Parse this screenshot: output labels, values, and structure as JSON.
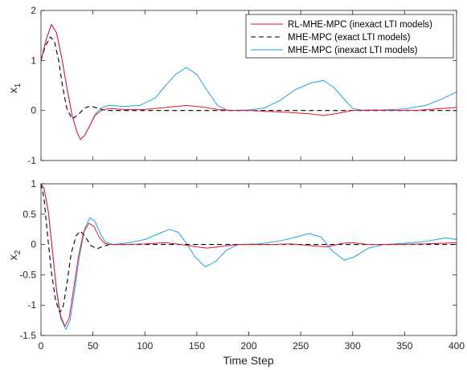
{
  "colors": {
    "rl": "#e8142c",
    "exact": "#000000",
    "inexact": "#1ea3e6",
    "axis": "#262626"
  },
  "chart_data": [
    {
      "type": "line",
      "ylabel": "x",
      "ylabel_sub": "1",
      "xlim": [
        0,
        400
      ],
      "ylim": [
        -1,
        2
      ],
      "xticks": [
        0,
        50,
        100,
        150,
        200,
        250,
        300,
        350,
        400
      ],
      "xtick_labels": [],
      "yticks": [
        -1,
        0,
        1,
        2
      ],
      "ytick_labels": [
        "-1",
        "0",
        "1",
        "2"
      ],
      "grid": false,
      "legend": "top-right",
      "series": [
        {
          "name": "RL-MHE-MPC (inexact LTI models)",
          "style": "solid",
          "color_key": "rl",
          "points": [
            [
              0,
              1
            ],
            [
              5,
              1.42
            ],
            [
              10,
              1.72
            ],
            [
              15,
              1.55
            ],
            [
              20,
              1.05
            ],
            [
              25,
              0.45
            ],
            [
              30,
              -0.1
            ],
            [
              35,
              -0.45
            ],
            [
              38,
              -0.58
            ],
            [
              42,
              -0.5
            ],
            [
              47,
              -0.3
            ],
            [
              52,
              -0.1
            ],
            [
              58,
              0
            ],
            [
              65,
              0.04
            ],
            [
              80,
              0.02
            ],
            [
              100,
              0.02
            ],
            [
              120,
              0.06
            ],
            [
              140,
              0.1
            ],
            [
              155,
              0.07
            ],
            [
              170,
              0.02
            ],
            [
              185,
              0
            ],
            [
              200,
              0
            ],
            [
              220,
              -0.02
            ],
            [
              240,
              -0.04
            ],
            [
              260,
              -0.07
            ],
            [
              272,
              -0.1
            ],
            [
              285,
              -0.06
            ],
            [
              300,
              0
            ],
            [
              320,
              0.01
            ],
            [
              340,
              0
            ],
            [
              360,
              0
            ],
            [
              380,
              0.03
            ],
            [
              400,
              0.06
            ]
          ]
        },
        {
          "name": "MHE-MPC (exact LTI models)",
          "style": "dashed",
          "color_key": "exact",
          "points": [
            [
              0,
              1
            ],
            [
              4,
              1.28
            ],
            [
              9,
              1.47
            ],
            [
              13,
              1.38
            ],
            [
              17,
              1.0
            ],
            [
              21,
              0.45
            ],
            [
              25,
              0.03
            ],
            [
              30,
              -0.17
            ],
            [
              36,
              -0.08
            ],
            [
              42,
              0.05
            ],
            [
              48,
              0.09
            ],
            [
              55,
              0.04
            ],
            [
              63,
              0
            ],
            [
              80,
              0
            ],
            [
              120,
              0
            ],
            [
              160,
              0
            ],
            [
              200,
              0
            ],
            [
              240,
              0
            ],
            [
              280,
              0
            ],
            [
              320,
              0
            ],
            [
              360,
              0
            ],
            [
              400,
              0
            ]
          ]
        },
        {
          "name": "MHE-MPC (inexact LTI models)",
          "style": "solid",
          "color_key": "inexact",
          "points": [
            [
              0,
              1
            ],
            [
              5,
              1.42
            ],
            [
              10,
              1.72
            ],
            [
              15,
              1.55
            ],
            [
              20,
              1.05
            ],
            [
              25,
              0.45
            ],
            [
              30,
              -0.1
            ],
            [
              35,
              -0.45
            ],
            [
              38,
              -0.58
            ],
            [
              42,
              -0.5
            ],
            [
              47,
              -0.3
            ],
            [
              52,
              -0.08
            ],
            [
              58,
              0.05
            ],
            [
              65,
              0.1
            ],
            [
              80,
              0.08
            ],
            [
              95,
              0.1
            ],
            [
              110,
              0.25
            ],
            [
              120,
              0.5
            ],
            [
              130,
              0.73
            ],
            [
              140,
              0.86
            ],
            [
              150,
              0.72
            ],
            [
              160,
              0.4
            ],
            [
              170,
              0.1
            ],
            [
              180,
              0
            ],
            [
              200,
              0.01
            ],
            [
              215,
              0.05
            ],
            [
              230,
              0.2
            ],
            [
              245,
              0.42
            ],
            [
              260,
              0.55
            ],
            [
              272,
              0.6
            ],
            [
              282,
              0.46
            ],
            [
              292,
              0.22
            ],
            [
              300,
              0.04
            ],
            [
              310,
              0
            ],
            [
              330,
              0.01
            ],
            [
              350,
              0.03
            ],
            [
              370,
              0.1
            ],
            [
              385,
              0.22
            ],
            [
              400,
              0.37
            ]
          ]
        }
      ]
    },
    {
      "type": "line",
      "xlabel": "Time Step",
      "ylabel": "x",
      "ylabel_sub": "2",
      "xlim": [
        0,
        400
      ],
      "ylim": [
        -1.5,
        1
      ],
      "xticks": [
        0,
        50,
        100,
        150,
        200,
        250,
        300,
        350,
        400
      ],
      "xtick_labels": [
        "0",
        "50",
        "100",
        "150",
        "200",
        "250",
        "300",
        "350",
        "400"
      ],
      "yticks": [
        -1.5,
        -1,
        -0.5,
        0,
        0.5,
        1
      ],
      "ytick_labels": [
        "-1.5",
        "-1",
        "-0.5",
        "0",
        "0.5",
        "1"
      ],
      "grid": false,
      "series": [
        {
          "name": "RL-MHE-MPC (inexact LTI models)",
          "style": "solid",
          "color_key": "rl",
          "points": [
            [
              0,
              1
            ],
            [
              3,
              0.92
            ],
            [
              7,
              0.55
            ],
            [
              11,
              -0.1
            ],
            [
              15,
              -0.75
            ],
            [
              19,
              -1.18
            ],
            [
              23,
              -1.35
            ],
            [
              27,
              -1.22
            ],
            [
              31,
              -0.78
            ],
            [
              36,
              -0.2
            ],
            [
              41,
              0.2
            ],
            [
              46,
              0.35
            ],
            [
              51,
              0.3
            ],
            [
              56,
              0.12
            ],
            [
              61,
              0.02
            ],
            [
              66,
              0
            ],
            [
              80,
              0
            ],
            [
              100,
              0.01
            ],
            [
              120,
              0.03
            ],
            [
              135,
              0
            ],
            [
              150,
              -0.04
            ],
            [
              160,
              -0.06
            ],
            [
              175,
              -0.03
            ],
            [
              190,
              0
            ],
            [
              220,
              0
            ],
            [
              240,
              0.01
            ],
            [
              260,
              -0.02
            ],
            [
              275,
              -0.04
            ],
            [
              290,
              0.02
            ],
            [
              300,
              0.03
            ],
            [
              315,
              0
            ],
            [
              340,
              0
            ],
            [
              370,
              0.01
            ],
            [
              400,
              0.03
            ]
          ]
        },
        {
          "name": "MHE-MPC (exact LTI models)",
          "style": "dashed",
          "color_key": "exact",
          "points": [
            [
              0,
              1
            ],
            [
              3,
              0.75
            ],
            [
              6,
              0.2
            ],
            [
              10,
              -0.45
            ],
            [
              14,
              -0.92
            ],
            [
              18,
              -1.12
            ],
            [
              21,
              -1.05
            ],
            [
              25,
              -0.65
            ],
            [
              29,
              -0.15
            ],
            [
              34,
              0.15
            ],
            [
              38,
              0.22
            ],
            [
              43,
              0.12
            ],
            [
              48,
              -0.02
            ],
            [
              54,
              -0.07
            ],
            [
              60,
              -0.03
            ],
            [
              66,
              0
            ],
            [
              90,
              0
            ],
            [
              130,
              0
            ],
            [
              170,
              0
            ],
            [
              210,
              0
            ],
            [
              250,
              0
            ],
            [
              290,
              0
            ],
            [
              330,
              0
            ],
            [
              370,
              0
            ],
            [
              400,
              0
            ]
          ]
        },
        {
          "name": "MHE-MPC (inexact LTI models)",
          "style": "solid",
          "color_key": "inexact",
          "points": [
            [
              0,
              1
            ],
            [
              3,
              0.92
            ],
            [
              7,
              0.55
            ],
            [
              11,
              -0.1
            ],
            [
              15,
              -0.78
            ],
            [
              19,
              -1.22
            ],
            [
              24,
              -1.4
            ],
            [
              28,
              -1.25
            ],
            [
              32,
              -0.8
            ],
            [
              37,
              -0.2
            ],
            [
              42,
              0.25
            ],
            [
              47,
              0.44
            ],
            [
              52,
              0.38
            ],
            [
              57,
              0.18
            ],
            [
              62,
              0.04
            ],
            [
              70,
              0
            ],
            [
              85,
              0.03
            ],
            [
              100,
              0.08
            ],
            [
              112,
              0.17
            ],
            [
              124,
              0.25
            ],
            [
              132,
              0.2
            ],
            [
              140,
              0.02
            ],
            [
              148,
              -0.2
            ],
            [
              158,
              -0.37
            ],
            [
              168,
              -0.28
            ],
            [
              178,
              -0.1
            ],
            [
              190,
              0
            ],
            [
              210,
              0.01
            ],
            [
              230,
              0.06
            ],
            [
              245,
              0.12
            ],
            [
              258,
              0.18
            ],
            [
              270,
              0.12
            ],
            [
              280,
              -0.1
            ],
            [
              292,
              -0.26
            ],
            [
              302,
              -0.2
            ],
            [
              315,
              -0.06
            ],
            [
              330,
              0
            ],
            [
              350,
              0.02
            ],
            [
              370,
              0.05
            ],
            [
              390,
              0.11
            ],
            [
              400,
              0.08
            ]
          ]
        }
      ]
    }
  ]
}
